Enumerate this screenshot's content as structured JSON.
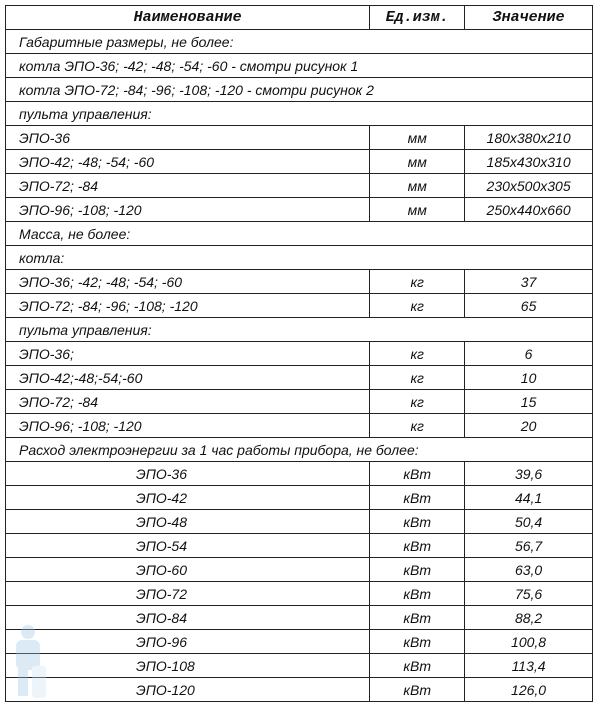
{
  "header": {
    "name": "Наименование",
    "unit": "Ед.изм.",
    "value": "Значение"
  },
  "rows": [
    {
      "type": "section",
      "name": "Габаритные размеры, не более:"
    },
    {
      "type": "section",
      "name": "котла ЭПО-36; -42; -48; -54; -60 - смотри рисунок 1"
    },
    {
      "type": "section",
      "name": "котла ЭПО-72; -84; -96; -108; -120 - смотри рисунок 2"
    },
    {
      "type": "section",
      "name": "пульта управления:"
    },
    {
      "type": "item",
      "name": "ЭПО-36",
      "unit": "мм",
      "value": "180x380x210"
    },
    {
      "type": "item",
      "name": "ЭПО-42; -48; -54; -60",
      "unit": "мм",
      "value": "185x430x310"
    },
    {
      "type": "item",
      "name": "ЭПО-72; -84",
      "unit": "мм",
      "value": "230x500x305"
    },
    {
      "type": "item",
      "name": "ЭПО-96; -108; -120",
      "unit": "мм",
      "value": "250x440x660"
    },
    {
      "type": "section",
      "name": "Масса, не более:"
    },
    {
      "type": "section",
      "name": "котла:"
    },
    {
      "type": "item",
      "name": "ЭПО-36; -42; -48; -54; -60",
      "unit": "кг",
      "value": "37"
    },
    {
      "type": "item",
      "name": "ЭПО-72; -84; -96; -108; -120",
      "unit": "кг",
      "value": "65"
    },
    {
      "type": "section",
      "name": "пульта управления:"
    },
    {
      "type": "item",
      "name": "ЭПО-36;",
      "unit": "кг",
      "value": "6"
    },
    {
      "type": "item",
      "name": "ЭПО-42;-48;-54;-60",
      "unit": "кг",
      "value": "10"
    },
    {
      "type": "item",
      "name": "ЭПО-72; -84",
      "unit": "кг",
      "value": "15"
    },
    {
      "type": "item",
      "name": "ЭПО-96; -108; -120",
      "unit": "кг",
      "value": "20"
    },
    {
      "type": "section",
      "name": "Расход электроэнергии за 1 час работы прибора, не более:"
    },
    {
      "type": "indent",
      "name": "ЭПО-36",
      "unit": "кВт",
      "value": "39,6"
    },
    {
      "type": "indent",
      "name": "ЭПО-42",
      "unit": "кВт",
      "value": "44,1"
    },
    {
      "type": "indent",
      "name": "ЭПО-48",
      "unit": "кВт",
      "value": "50,4"
    },
    {
      "type": "indent",
      "name": "ЭПО-54",
      "unit": "кВт",
      "value": "56,7"
    },
    {
      "type": "indent",
      "name": "ЭПО-60",
      "unit": "кВт",
      "value": "63,0"
    },
    {
      "type": "indent",
      "name": "ЭПО-72",
      "unit": "кВт",
      "value": "75,6"
    },
    {
      "type": "indent",
      "name": "ЭПО-84",
      "unit": "кВт",
      "value": "88,2"
    },
    {
      "type": "indent",
      "name": "ЭПО-96",
      "unit": "кВт",
      "value": "100,8"
    },
    {
      "type": "indent",
      "name": "ЭПО-108",
      "unit": "кВт",
      "value": "113,4"
    },
    {
      "type": "indent",
      "name": "ЭПО-120",
      "unit": "кВт",
      "value": "126,0"
    }
  ]
}
